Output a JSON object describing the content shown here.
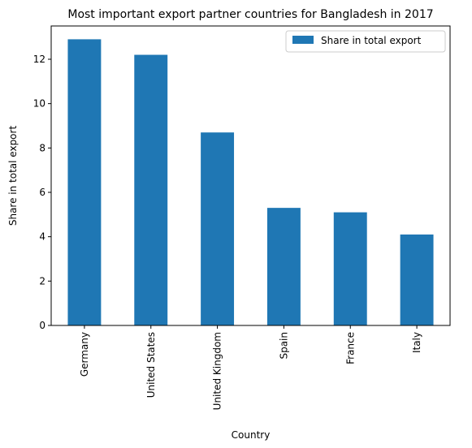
{
  "chart_data": {
    "type": "bar",
    "title": "Most important export partner countries for Bangladesh in 2017",
    "xlabel": "Country",
    "ylabel": "Share in total export",
    "categories": [
      "Germany",
      "United States",
      "United Kingdom",
      "Spain",
      "France",
      "Italy"
    ],
    "series": [
      {
        "name": "Share in total export",
        "values": [
          12.9,
          12.2,
          8.7,
          5.3,
          5.1,
          4.1
        ]
      }
    ],
    "ylim": [
      0,
      13.5
    ],
    "yticks": [
      0,
      2,
      4,
      6,
      8,
      10,
      12
    ],
    "grid": false,
    "legend_position": "top-right",
    "colors": {
      "bar": "#1f77b4"
    }
  }
}
